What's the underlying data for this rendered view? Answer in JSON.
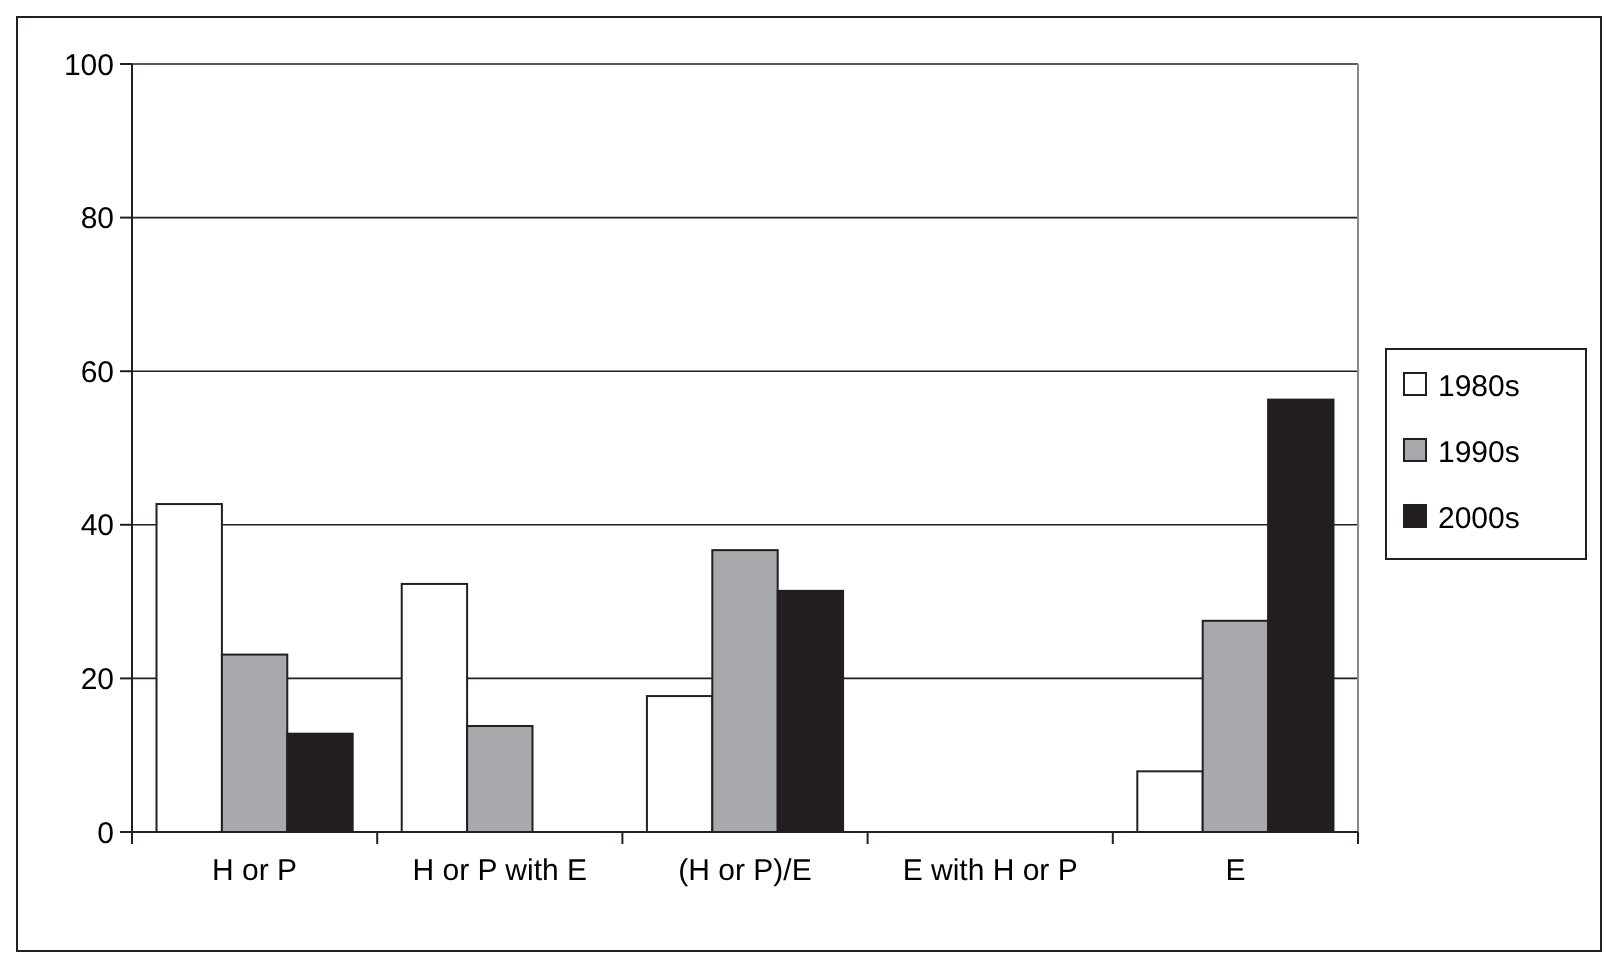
{
  "chart_data": {
    "type": "bar",
    "categories": [
      "H or P",
      "H or P with E",
      "(H or P)/E",
      "E with H or P",
      "E"
    ],
    "series": [
      {
        "name": "1980s",
        "color": "#ffffff",
        "values": [
          42.7,
          32.3,
          17.7,
          0,
          7.9
        ]
      },
      {
        "name": "1990s",
        "color": "#a7a9ac",
        "values": [
          23.1,
          13.8,
          36.7,
          0,
          27.5
        ]
      },
      {
        "name": "2000s",
        "color": "#231f20",
        "values": [
          12.8,
          0,
          31.4,
          0,
          56.3
        ]
      }
    ],
    "ylim": [
      0,
      100
    ],
    "yticks": [
      0,
      20,
      40,
      60,
      80,
      100
    ],
    "grid": "y",
    "legend": "right"
  }
}
